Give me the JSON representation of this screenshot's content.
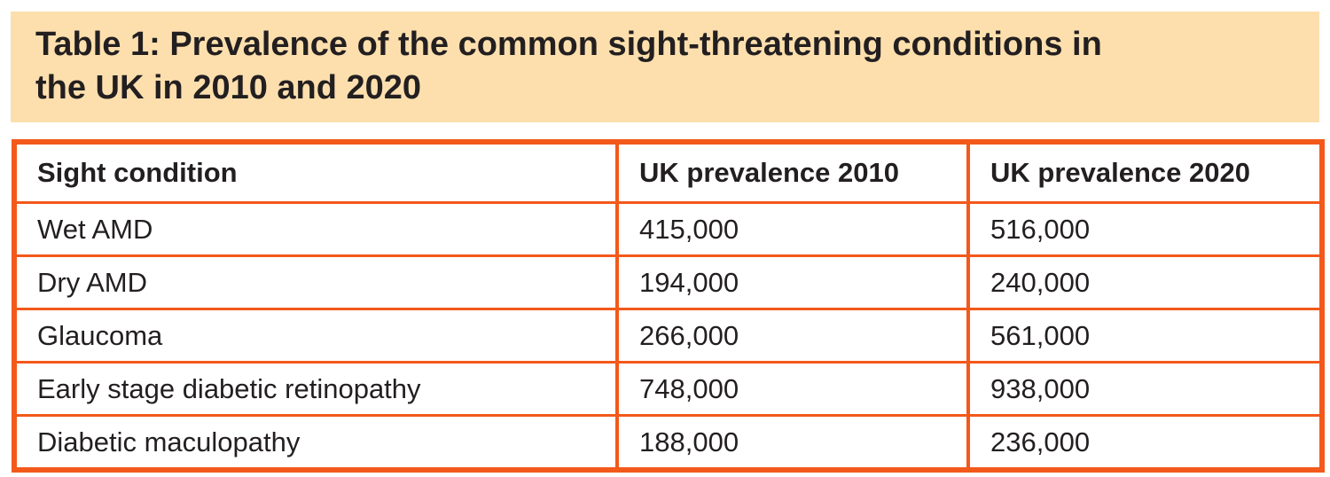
{
  "banner": {
    "title_line1": "Table 1: Prevalence of the common sight-threatening conditions in",
    "title_line2": "the UK in 2010 and 2020",
    "title_full": "Table 1: Prevalence of the common sight-threatening conditions in the UK in 2010 and 2020"
  },
  "table": {
    "columns": [
      "Sight condition",
      "UK prevalence 2010",
      "UK prevalence 2020"
    ],
    "rows": [
      [
        "Wet AMD",
        "415,000",
        "516,000"
      ],
      [
        "Dry AMD",
        "194,000",
        "240,000"
      ],
      [
        "Glaucoma",
        "266,000",
        "561,000"
      ],
      [
        "Early stage diabetic retinopathy",
        "748,000",
        "938,000"
      ],
      [
        "Diabetic maculopathy",
        "188,000",
        "236,000"
      ]
    ]
  },
  "chart_data": {
    "type": "table",
    "title": "Table 1: Prevalence of the common sight-threatening conditions in the UK in 2010 and 2020",
    "columns": [
      "Sight condition",
      "UK prevalence 2010",
      "UK prevalence 2020"
    ],
    "categories": [
      "Wet AMD",
      "Dry AMD",
      "Glaucoma",
      "Early stage diabetic retinopathy",
      "Diabetic maculopathy"
    ],
    "series": [
      {
        "name": "UK prevalence 2010",
        "values": [
          415000,
          194000,
          266000,
          748000,
          188000
        ]
      },
      {
        "name": "UK prevalence 2020",
        "values": [
          516000,
          240000,
          561000,
          938000,
          236000
        ]
      }
    ]
  },
  "colors": {
    "banner_background": "#FCDFAD",
    "table_border": "#F3591B",
    "text": "#231F20",
    "page_background": "#FFFFFF"
  }
}
